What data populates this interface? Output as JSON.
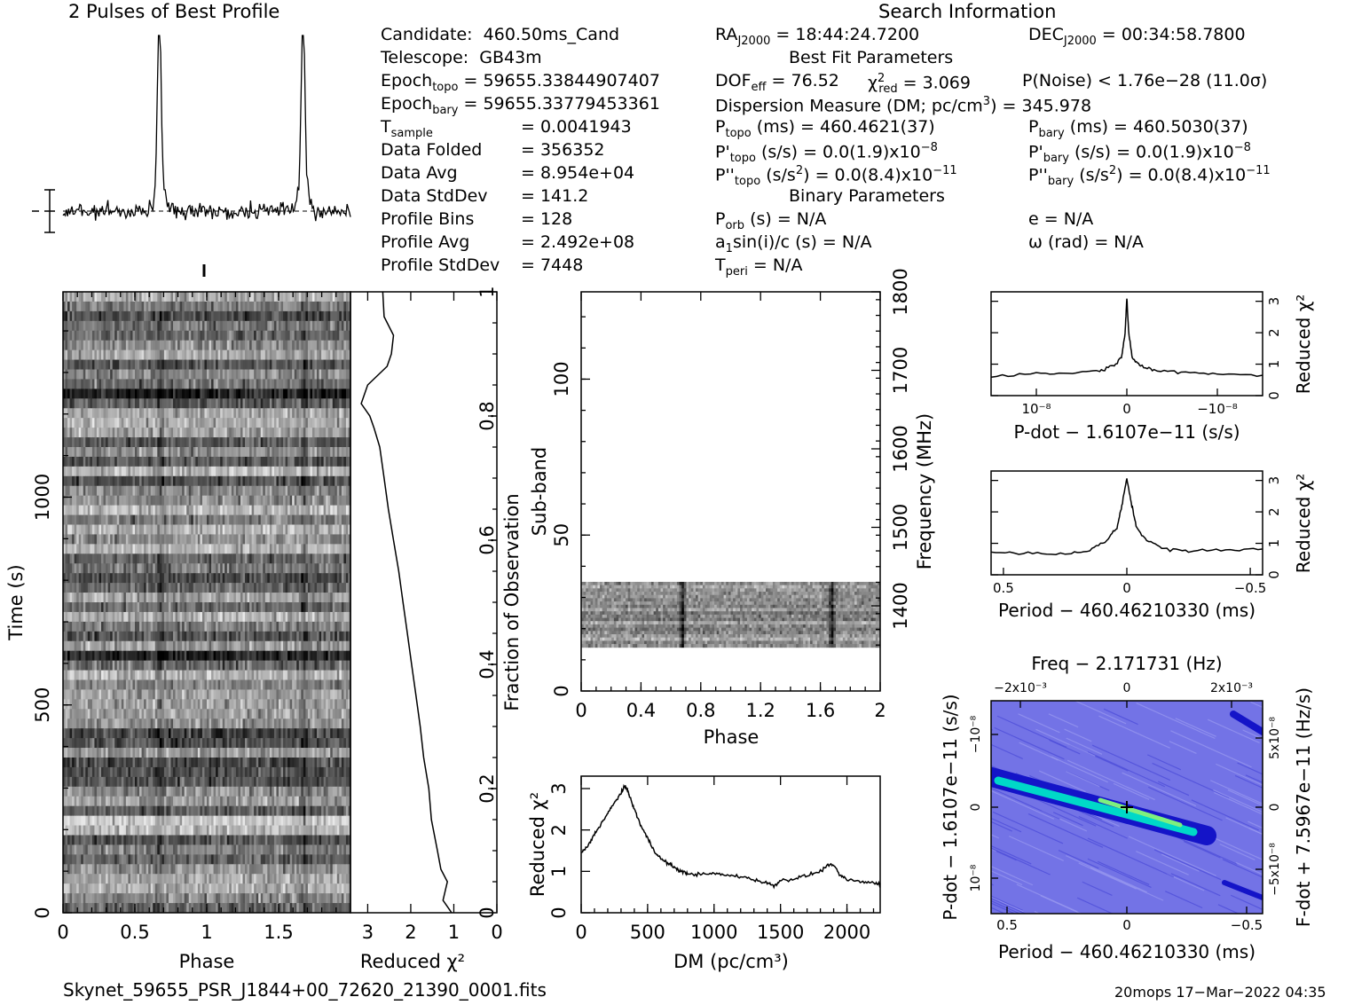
{
  "header": {
    "profile_title": "2 Pulses of Best Profile",
    "search_title": "Search Information"
  },
  "info_left": [
    {
      "label": "Candidate:",
      "value": "460.50ms_Cand"
    },
    {
      "label": "Telescope:",
      "value": "GB43m"
    },
    {
      "label": "Epoch",
      "sub": "topo",
      "value": "= 59655.33844907407"
    },
    {
      "label": "Epoch",
      "sub": "bary",
      "value": "= 59655.33779453361"
    },
    {
      "label": "T",
      "sub": "sample",
      "value": "=   0.0041943"
    },
    {
      "label": "Data Folded",
      "value": "=   356352"
    },
    {
      "label": "Data Avg",
      "value": "=   8.954e+04"
    },
    {
      "label": "Data StdDev",
      "value": "=   141.2"
    },
    {
      "label": "Profile Bins",
      "value": "=   128"
    },
    {
      "label": "Profile Avg",
      "value": "=   2.492e+08"
    },
    {
      "label": "Profile StdDev",
      "value": "=   7448"
    }
  ],
  "info_mid": {
    "ra": "RA",
    "ra_sub": "J2000",
    "ra_value": "= 18:44:24.7200",
    "best_fit_title": "Best Fit Parameters",
    "dof_label": "DOF",
    "dof_sub": "eff",
    "dof_value": "= 76.52",
    "chi_label": "χ",
    "chi_sup": "2",
    "chi_sub": "red",
    "chi_value": "= 3.069",
    "pnoise": "P(Noise) < 1.76e−28   (11.0σ)",
    "dm_text": "Dispersion Measure (DM; pc/cm",
    "dm_sup": "3",
    "dm_value": ") = 345.978",
    "ptopo": "P",
    "ptopo_sub": "topo",
    "ptopo_value": "(ms)  =  460.4621(37)",
    "pdtopo": "P'",
    "pdtopo_sub": "topo",
    "pdtopo_value": "(s/s) = 0.0(1.9)x10",
    "pdtopo_exp": "−8",
    "pddtopo": "P''",
    "pddtopo_sub": "topo",
    "pddtopo_value": "(s/s",
    "pddtopo_sup2": "2",
    "pddtopo_value2": ") = 0.0(8.4)x10",
    "pddtopo_exp": "−11",
    "binary_title": "Binary Parameters",
    "porb": "P",
    "porb_sub": "orb",
    "porb_value": "(s) = N/A",
    "a1": "a",
    "a1_sub": "1",
    "a1_value": "sin(i)/c (s) = N/A",
    "tperi": "T",
    "tperi_sub": "peri",
    "tperi_value": "= N/A"
  },
  "info_right": {
    "dec": "DEC",
    "dec_sub": "J2000",
    "dec_value": "= 00:34:58.7800",
    "pbary": "P",
    "pbary_sub": "bary",
    "pbary_value": "(ms)  =  460.5030(37)",
    "pdbary": "P'",
    "pdbary_sub": "bary",
    "pdbary_value": "(s/s) = 0.0(1.9)x10",
    "pdbary_exp": "−8",
    "pddbary": "P''",
    "pddbary_sub": "bary",
    "pddbary_value": "(s/s",
    "pddbary_sup2": "2",
    "pddbary_value2": ") = 0.0(8.4)x10",
    "pddbary_exp": "−11",
    "ecc": "e = N/A",
    "omega": "ω (rad) = N/A"
  },
  "footer": {
    "filename": "Skynet_59655_PSR_J1844+00_72620_21390_0001.fits",
    "stamp": "20mops 17−Mar−2022 04:35"
  },
  "colors": {
    "ink": "#000000",
    "grey_low": "#e8e8e8",
    "grey_high": "#000000",
    "contour_bg": "#7373e6",
    "contour_mid": "#1414c8",
    "contour_hi": "#00d8c8",
    "contour_top": "#7ef07e"
  },
  "chart_data": [
    {
      "id": "pulse-profile",
      "type": "line",
      "title": "2 Pulses of Best Profile",
      "xlabel": "",
      "ylabel": "",
      "x_range": [
        0,
        2
      ],
      "peaks_phase": [
        0.67,
        1.67
      ],
      "peak_height_sigma": 11.0,
      "bins_per_pulse": 128
    },
    {
      "id": "time-phase",
      "type": "heatmap",
      "xlabel": "Phase",
      "ylabel": "Time (s)",
      "x_ticks": [
        "0",
        "0.5",
        "1",
        "1.5"
      ],
      "y_ticks": [
        "0",
        "500",
        "1000"
      ],
      "x_range": [
        0,
        2
      ],
      "y_range": [
        0,
        1494
      ],
      "right_axis_label": "Fraction of Observation",
      "right_ticks": [
        "0.2",
        "0.4",
        "0.6",
        "0.8",
        "1"
      ]
    },
    {
      "id": "chi-vs-time",
      "type": "line",
      "xlabel": "Reduced χ²",
      "x_ticks": [
        "3",
        "2",
        "1",
        "0"
      ],
      "fraction": [
        0,
        0.02,
        0.05,
        0.07,
        0.1,
        0.15,
        0.2,
        0.25,
        0.3,
        0.35,
        0.4,
        0.45,
        0.5,
        0.55,
        0.6,
        0.65,
        0.7,
        0.75,
        0.78,
        0.8,
        0.82,
        0.85,
        0.88,
        0.9,
        0.93,
        0.96,
        1.0
      ],
      "chi": [
        1.05,
        1.25,
        1.15,
        1.3,
        1.38,
        1.52,
        1.58,
        1.7,
        1.78,
        1.88,
        1.98,
        2.08,
        2.18,
        2.28,
        2.4,
        2.52,
        2.62,
        2.72,
        2.85,
        2.95,
        3.15,
        3.0,
        2.55,
        2.45,
        2.4,
        2.62,
        2.65
      ]
    },
    {
      "id": "subband-phase",
      "type": "heatmap",
      "xlabel": "Phase",
      "ylabel": "Sub-band",
      "x_ticks": [
        "0",
        "0.4",
        "0.8",
        "1.2",
        "1.6",
        "2"
      ],
      "y_ticks": [
        "0",
        "50",
        "100"
      ],
      "right_axis_label": "Frequency (MHz)",
      "right_ticks": [
        "1400",
        "1500",
        "1600",
        "1700",
        "1800"
      ],
      "x_range": [
        0,
        2
      ],
      "y_range": [
        0,
        128
      ],
      "active_subbands": [
        14,
        35
      ]
    },
    {
      "id": "dm-curve",
      "type": "line",
      "xlabel": "DM (pc/cm³)",
      "ylabel": "Reduced χ²",
      "x_ticks": [
        "0",
        "500",
        "1000",
        "1500",
        "2000"
      ],
      "y_ticks": [
        "0",
        "1",
        "2",
        "3"
      ],
      "x_range": [
        0,
        2250
      ],
      "y_range": [
        0,
        3.3
      ],
      "x": [
        0,
        50,
        100,
        150,
        200,
        250,
        300,
        330,
        345,
        360,
        400,
        450,
        500,
        550,
        600,
        650,
        700,
        750,
        800,
        900,
        1000,
        1100,
        1200,
        1300,
        1400,
        1450,
        1500,
        1600,
        1700,
        1800,
        1880,
        1950,
        2000,
        2100,
        2200,
        2250
      ],
      "y": [
        1.45,
        1.6,
        1.9,
        2.15,
        2.4,
        2.65,
        2.9,
        3.05,
        3.0,
        2.85,
        2.5,
        2.1,
        1.8,
        1.5,
        1.3,
        1.2,
        1.1,
        1.0,
        0.95,
        0.92,
        0.95,
        0.9,
        0.88,
        0.8,
        0.72,
        0.65,
        0.78,
        0.82,
        0.9,
        1.0,
        1.2,
        0.9,
        0.8,
        0.75,
        0.72,
        0.7
      ]
    },
    {
      "id": "pdot-curve",
      "type": "line",
      "xlabel": "P-dot − 1.6107e−11 (s/s)",
      "ylabel": "Reduced χ²",
      "x_ticks": [
        "10⁻⁸",
        "0",
        "−10⁻⁸"
      ],
      "y_ticks": [
        "0",
        "1",
        "2",
        "3"
      ],
      "x_range": [
        1.5,
        -1.5
      ],
      "y_range": [
        0,
        3.3
      ],
      "x": [
        1.5,
        1.0,
        0.6,
        0.3,
        0.15,
        0.06,
        0.02,
        0,
        -0.02,
        -0.06,
        -0.15,
        -0.3,
        -0.6,
        -1.0,
        -1.5
      ],
      "y": [
        0.62,
        0.7,
        0.72,
        0.8,
        0.95,
        1.2,
        2.0,
        3.1,
        2.0,
        1.2,
        0.95,
        0.8,
        0.75,
        0.7,
        0.65
      ]
    },
    {
      "id": "period-curve",
      "type": "line",
      "xlabel": "Period − 460.46210330 (ms)",
      "ylabel": "Reduced χ²",
      "x_ticks": [
        "0.5",
        "0",
        "−0.5"
      ],
      "y_ticks": [
        "0",
        "1",
        "2",
        "3"
      ],
      "x_range": [
        0.55,
        -0.55
      ],
      "y_range": [
        0,
        3.3
      ],
      "x": [
        0.55,
        0.4,
        0.25,
        0.15,
        0.08,
        0.04,
        0.02,
        0,
        -0.02,
        -0.04,
        -0.08,
        -0.15,
        -0.25,
        -0.4,
        -0.55
      ],
      "y": [
        0.72,
        0.68,
        0.65,
        0.8,
        1.1,
        1.5,
        2.2,
        3.05,
        2.2,
        1.5,
        1.1,
        0.82,
        0.75,
        0.8,
        0.82
      ]
    },
    {
      "id": "period-pdot-plane",
      "type": "heatmap",
      "title": "Freq − 2.171731 (Hz)",
      "xlabel": "Period − 460.46210330 (ms)",
      "ylabel": "P-dot − 1.6107e−11 (s/s)",
      "right_axis_label": "F-dot + 7.5967e−11 (Hz/s)",
      "x_ticks": [
        "0.5",
        "0",
        "−0.5"
      ],
      "top_ticks": [
        "−2x10⁻³",
        "0",
        "2x10⁻³"
      ],
      "y_ticks": [
        "10⁻⁸",
        "0",
        "−10⁻⁸"
      ],
      "right_ticks": [
        "−5x10⁻⁸",
        "0",
        "5x10⁻⁸"
      ],
      "best_fit_marker": [
        0,
        0
      ]
    }
  ]
}
